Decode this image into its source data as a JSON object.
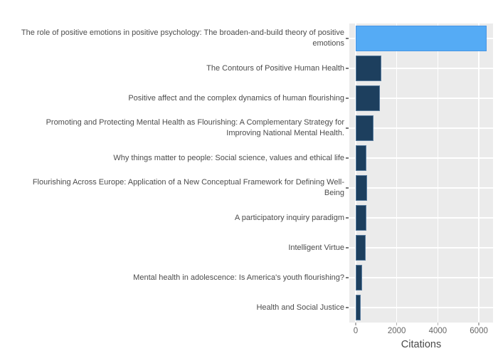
{
  "chart_data": {
    "type": "bar",
    "orientation": "horizontal",
    "title": "",
    "xlabel": "Citations",
    "ylabel": "",
    "categories": [
      "The role of positive emotions in positive psychology: The broaden-and-build theory of positive emotions",
      "The Contours of Positive Human Health",
      "Positive affect and the complex dynamics of human flourishing",
      "Promoting and Protecting Mental Health as Flourishing: A Complementary Strategy for Improving National Mental Health.",
      "Why things matter to people: Social science, values and ethical life",
      "Flourishing Across Europe: Application of a New Conceptual Framework for Defining Well-Being",
      "A participatory inquiry paradigm",
      "Intelligent Virtue",
      "Mental health in adolescence: Is America's youth flourishing?",
      "Health and Social Justice"
    ],
    "values": [
      6390,
      1250,
      1180,
      870,
      520,
      545,
      530,
      480,
      315,
      250
    ],
    "highlight_index": 0,
    "xticks": [
      0,
      2000,
      4000,
      6000
    ],
    "xtick_labels": [
      "0",
      "2000",
      "4000",
      "6000"
    ],
    "xlim": [
      -310,
      6690
    ],
    "grid": true,
    "legend": false,
    "plot_background": "#ebebeb",
    "grid_color": "#ffffff",
    "colors": {
      "highlight_bar": "#55abf5",
      "bar": "#1d3f5e",
      "tick_text": "#666666",
      "label_text": "#4c4c4c",
      "axis_title_text": "#4a4a4a"
    }
  }
}
